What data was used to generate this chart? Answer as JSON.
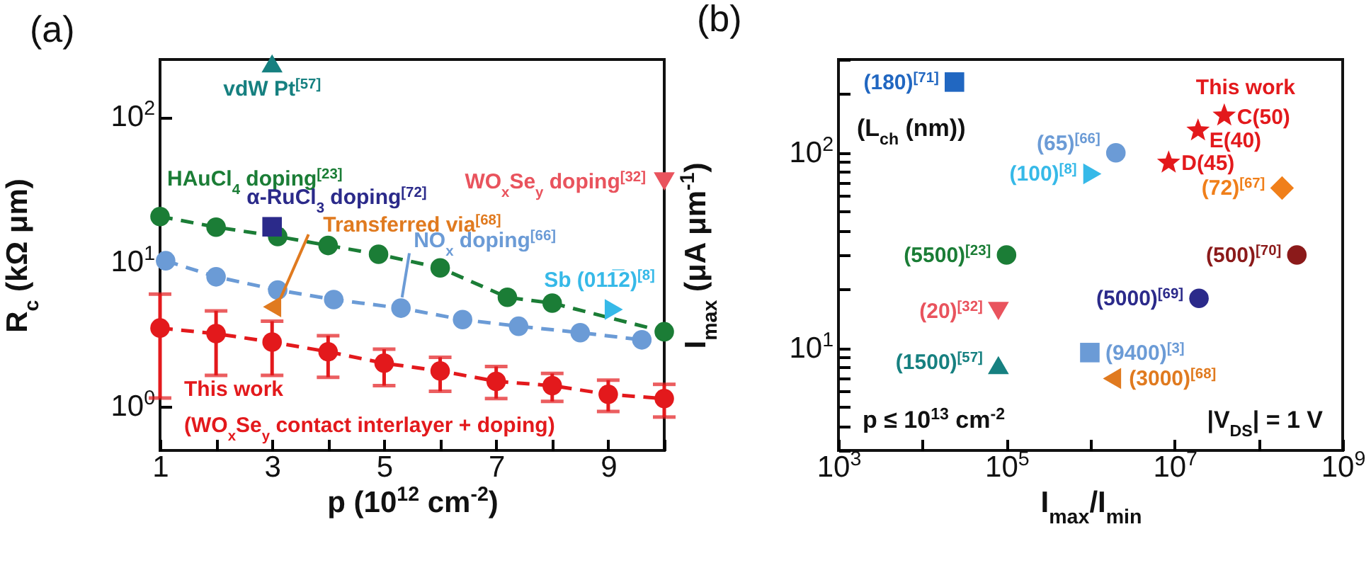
{
  "chart_data": [
    {
      "type": "scatter",
      "title": "(a)",
      "xlabel": "p (10$^{12}$ cm$^{-2}$)",
      "ylabel": "R$_{c}$ (kΩ μm)",
      "log": "y",
      "xlim": [
        1,
        10
      ],
      "ylim": [
        0.5,
        250
      ],
      "xticks": [
        1,
        {
          "value": 2,
          "label": null
        },
        3,
        {
          "value": 4,
          "label": null
        },
        5,
        {
          "value": 6,
          "label": null
        },
        7,
        {
          "value": 8,
          "label": null
        },
        9,
        {
          "value": 10,
          "label": null
        }
      ],
      "yticks": [
        {
          "value": 1,
          "label": "10$^{0}$"
        },
        {
          "value": 10,
          "label": "10$^{1}$"
        },
        {
          "value": 100,
          "label": "10$^{2}$"
        }
      ],
      "series": [
        {
          "name": "This work",
          "color": "#e3191c",
          "type": "line",
          "marker": "circle",
          "line_style": "dashed",
          "x": [
            1,
            2,
            3,
            4,
            5,
            6,
            7,
            8,
            9,
            10
          ],
          "values": [
            3.5,
            3.2,
            2.8,
            2.4,
            2.0,
            1.77,
            1.5,
            1.4,
            1.22,
            1.14
          ],
          "errors": [
            [
              1.15,
              6.0
            ],
            [
              1.65,
              4.6
            ],
            [
              1.65,
              3.9
            ],
            [
              1.6,
              3.1
            ],
            [
              1.4,
              2.5
            ],
            [
              1.28,
              2.2
            ],
            [
              1.14,
              1.9
            ],
            [
              1.09,
              1.7
            ],
            [
              0.93,
              1.53
            ],
            [
              0.85,
              1.43
            ]
          ]
        },
        {
          "name": "HAuCl$_{4}$ doping$^{[23]}$",
          "color": "#1b7d36",
          "type": "line",
          "marker": "circle",
          "line_style": "dashed",
          "x": [
            1,
            2,
            3.1,
            4,
            4.9,
            6,
            7.2,
            8,
            10
          ],
          "values": [
            20.6,
            17.4,
            15,
            13,
            11.3,
            9.1,
            5.7,
            5.2,
            3.3
          ]
        },
        {
          "name": "NO$_{x}$ doping$^{[66]}$",
          "color": "#6b9bd6",
          "type": "line",
          "marker": "circle",
          "line_style": "dashed",
          "x": [
            1.1,
            2.0,
            3.1,
            4.1,
            5.3,
            6.4,
            7.4,
            8.5,
            9.6
          ],
          "values": [
            10.2,
            7.9,
            6.4,
            5.5,
            4.8,
            4.0,
            3.6,
            3.25,
            2.9
          ]
        },
        {
          "name": "α-RuCl$_{3}$ doping$^{[72]}$",
          "color": "#2b2a8a",
          "type": "scatter",
          "marker": "square",
          "x": [
            3
          ],
          "values": [
            17.5
          ]
        },
        {
          "name": "Transferred via$^{[68]}$",
          "color": "#e07a1f",
          "type": "scatter",
          "marker": "triangle-left",
          "x": [
            3
          ],
          "values": [
            4.9
          ]
        },
        {
          "name": "vdW Pt$^{[57]}$",
          "color": "#168080",
          "type": "scatter",
          "marker": "triangle-up",
          "x": [
            3
          ],
          "values": [
            235
          ]
        },
        {
          "name": "WO$_{x}$Se$_{y}$ doping$^{[32]}$",
          "color": "#e9535d",
          "type": "scatter",
          "marker": "triangle-down",
          "x": [
            10
          ],
          "values": [
            36
          ]
        },
        {
          "name": "Sb (011̅2)$^{[8]}$",
          "color": "#36b9e8",
          "type": "scatter",
          "marker": "triangle-right",
          "x": [
            9.1
          ],
          "values": [
            4.7
          ]
        }
      ],
      "annotations": [
        "(WO$_{x}$Se$_{y}$ contact interlayer + doping)"
      ]
    },
    {
      "type": "scatter",
      "title": "(b)",
      "xlabel": "I$_{max}$/I$_{min}$",
      "ylabel": "I$_{max}$ (μA μm$^{-1}$)",
      "log": "xy",
      "xlim": [
        1000,
        1000000000
      ],
      "ylim": [
        3,
        300
      ],
      "xticks": [
        {
          "value": 1000,
          "label": "10$^{3}$"
        },
        {
          "value": 10000,
          "label": null
        },
        {
          "value": 100000,
          "label": "10$^{5}$"
        },
        {
          "value": 1000000,
          "label": null
        },
        {
          "value": 10000000,
          "label": "10$^{7}$"
        },
        {
          "value": 100000000,
          "label": null
        },
        {
          "value": 1000000000,
          "label": "10$^{9}$"
        }
      ],
      "yticks": [
        {
          "value": 3,
          "label": null
        },
        {
          "value": 4,
          "label": null
        },
        {
          "value": 5,
          "label": null
        },
        {
          "value": 6,
          "label": null
        },
        {
          "value": 7,
          "label": null
        },
        {
          "value": 8,
          "label": null
        },
        {
          "value": 9,
          "label": null
        },
        {
          "value": 10,
          "label": "10$^{1}$"
        },
        {
          "value": 20,
          "label": null
        },
        {
          "value": 30,
          "label": null
        },
        {
          "value": 40,
          "label": null
        },
        {
          "value": 50,
          "label": null
        },
        {
          "value": 60,
          "label": null
        },
        {
          "value": 70,
          "label": null
        },
        {
          "value": 80,
          "label": null
        },
        {
          "value": 90,
          "label": null
        },
        {
          "value": 100,
          "label": "10$^{2}$"
        },
        {
          "value": 200,
          "label": null
        },
        {
          "value": 300,
          "label": null
        }
      ],
      "series": [
        {
          "name": "(180)$^{[71]}$",
          "color": "#2167c1",
          "type": "scatter",
          "marker": "square",
          "x": [
            24000
          ],
          "values": [
            230
          ]
        },
        {
          "name": "(65)$^{[66]}$",
          "color": "#6b9bd6",
          "type": "scatter",
          "marker": "circle",
          "x": [
            2000000
          ],
          "values": [
            100
          ]
        },
        {
          "name": "(100)$^{[8]}$",
          "color": "#36b9e8",
          "type": "scatter",
          "marker": "triangle-right",
          "x": [
            1050000
          ],
          "values": [
            78
          ]
        },
        {
          "name": "This work",
          "color": "#e3191c",
          "type": "scatter",
          "marker": "star",
          "x": [
            39000000,
            19000000,
            8500000
          ],
          "values": [
            155,
            130,
            89
          ]
        },
        {
          "name": "(72)$^{[67]}$",
          "color": "#f07f1a",
          "type": "scatter",
          "marker": "diamond",
          "x": [
            190000000
          ],
          "values": [
            66
          ]
        },
        {
          "name": "(5500)$^{[23]}$",
          "color": "#1b7d36",
          "type": "scatter",
          "marker": "circle",
          "x": [
            100000
          ],
          "values": [
            30
          ]
        },
        {
          "name": "(500)$^{[70]}$",
          "color": "#8b1a1a",
          "type": "scatter",
          "marker": "circle",
          "x": [
            285000000
          ],
          "values": [
            30
          ]
        },
        {
          "name": "(5000)$^{[69]}$",
          "color": "#2b2a8a",
          "type": "scatter",
          "marker": "circle",
          "x": [
            19500000
          ],
          "values": [
            18
          ]
        },
        {
          "name": "(20)$^{[32]}$",
          "color": "#e9535d",
          "type": "scatter",
          "marker": "triangle-down",
          "x": [
            80000
          ],
          "values": [
            15.5
          ]
        },
        {
          "name": "(1500)$^{[57]}$",
          "color": "#168080",
          "type": "scatter",
          "marker": "triangle-up",
          "x": [
            80000
          ],
          "values": [
            8.2
          ]
        },
        {
          "name": "(9400)$^{[3]}$",
          "color": "#6b9bd6",
          "type": "scatter",
          "marker": "square",
          "x": [
            980000
          ],
          "values": [
            9.5
          ]
        },
        {
          "name": "(3000)$^{[68]}$",
          "color": "#e07a1f",
          "type": "scatter",
          "marker": "triangle-left",
          "x": [
            1800000
          ],
          "values": [
            7.0
          ]
        }
      ],
      "annotations": [
        {
          "text": "C(50)",
          "x": 39000000,
          "y": 155
        },
        {
          "text": "E(40)",
          "x": 19000000,
          "y": 130
        },
        {
          "text": "D(45)",
          "x": 8500000,
          "y": 89
        },
        "(L$_{ch}$ (nm))",
        "p ≤ 10$^{13}$ cm$^{-2}$",
        "|V$_{DS}$| = 1 V"
      ]
    }
  ]
}
